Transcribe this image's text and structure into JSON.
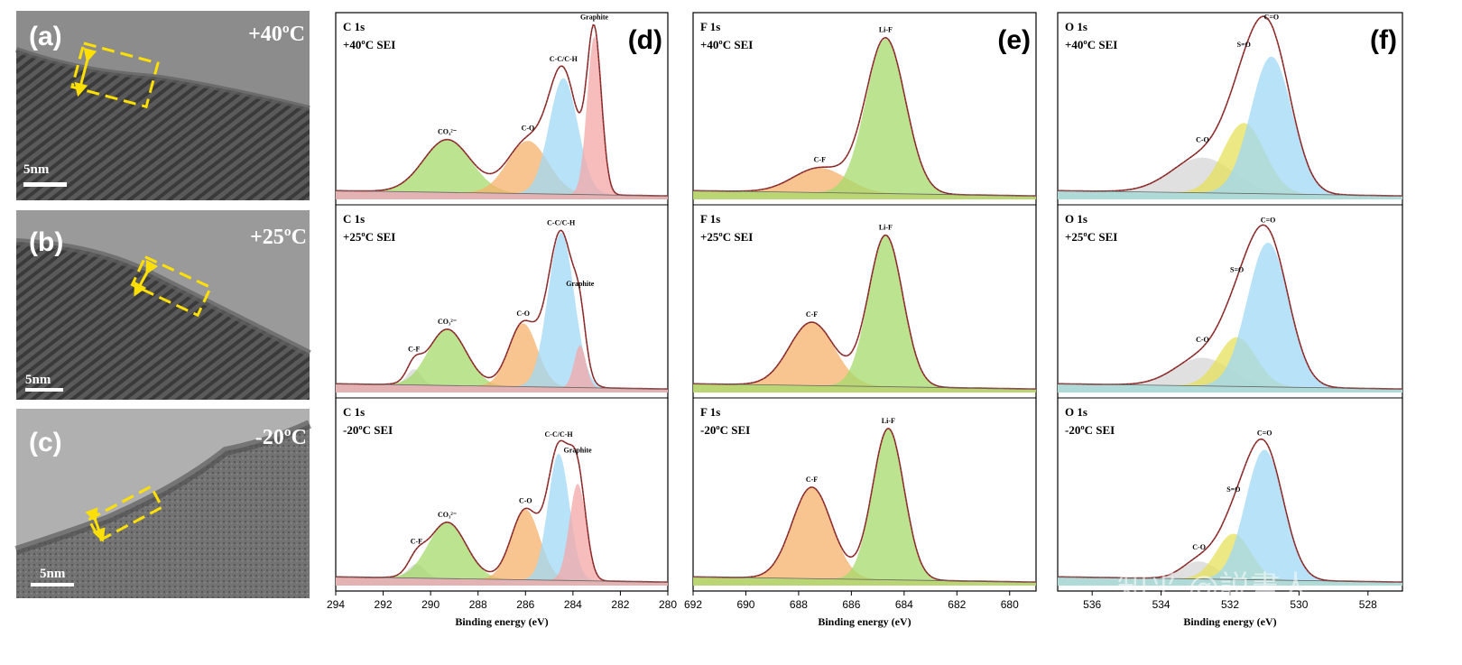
{
  "tem": [
    {
      "letter": "(a)",
      "temp": "+40ºC",
      "scale": "5nm"
    },
    {
      "letter": "(b)",
      "temp": "+25ºC",
      "scale": "5nm"
    },
    {
      "letter": "(c)",
      "temp": "-20ºC",
      "scale": "5nm"
    }
  ],
  "watermark": "知乎 @説書人",
  "colors": {
    "green": "#a6d96a",
    "orange": "#f5b26b",
    "blue": "#9fd8f5",
    "pink": "#f4a7a7",
    "yellow": "#e6e05a",
    "gray": "#d6d6d6",
    "envelope": "#b03030"
  },
  "chart_data": [
    {
      "type": "area",
      "letter": "(d)",
      "xlabel": "Binding energy (eV)",
      "xlim": [
        294,
        280
      ],
      "xticks": [
        294,
        292,
        290,
        288,
        286,
        284,
        282,
        280
      ],
      "rows": [
        {
          "title": "C 1s",
          "subtitle": "+40ºC SEI",
          "peaks": [
            {
              "name": "CO3 2-",
              "label": "CO₃²⁻",
              "center": 289.3,
              "height": 0.3,
              "width": 1.0,
              "color": "green"
            },
            {
              "name": "C-O",
              "label": "C-O",
              "center": 285.9,
              "height": 0.3,
              "width": 0.85,
              "color": "orange"
            },
            {
              "name": "C-C/C-H",
              "label": "C-C/C-H",
              "center": 284.4,
              "height": 0.66,
              "width": 0.6,
              "color": "blue"
            },
            {
              "name": "Graphite",
              "label": "Graphite",
              "center": 283.1,
              "height": 0.9,
              "width": 0.3,
              "color": "pink"
            }
          ]
        },
        {
          "title": "C 1s",
          "subtitle": "+25ºC SEI",
          "peaks": [
            {
              "name": "C-F",
              "label": "C-F",
              "center": 290.7,
              "height": 0.09,
              "width": 0.3,
              "color": "gray"
            },
            {
              "name": "CO3 2-",
              "label": "CO₃²⁻",
              "center": 289.3,
              "height": 0.32,
              "width": 0.8,
              "color": "green"
            },
            {
              "name": "C-O",
              "label": "C-O",
              "center": 286.1,
              "height": 0.36,
              "width": 0.6,
              "color": "orange"
            },
            {
              "name": "C-C/C-H",
              "label": "C-C/C-H",
              "center": 284.5,
              "height": 0.88,
              "width": 0.55,
              "color": "blue"
            },
            {
              "name": "Graphite",
              "label": "Graphite",
              "center": 283.7,
              "height": 0.24,
              "width": 0.25,
              "color": "pink"
            }
          ]
        },
        {
          "title": "C 1s",
          "subtitle": "-20ºC SEI",
          "peaks": [
            {
              "name": "C-F",
              "label": "C-F",
              "center": 290.6,
              "height": 0.08,
              "width": 0.35,
              "color": "gray"
            },
            {
              "name": "CO3 2-",
              "label": "CO₃²⁻",
              "center": 289.3,
              "height": 0.32,
              "width": 0.8,
              "color": "green"
            },
            {
              "name": "C-O",
              "label": "C-O",
              "center": 286.0,
              "height": 0.4,
              "width": 0.6,
              "color": "orange"
            },
            {
              "name": "C-C/C-H",
              "label": "C-C/C-H",
              "center": 284.6,
              "height": 0.72,
              "width": 0.45,
              "color": "blue"
            },
            {
              "name": "Graphite",
              "label": "Graphite",
              "center": 283.8,
              "height": 0.55,
              "width": 0.35,
              "color": "pink"
            }
          ]
        }
      ]
    },
    {
      "type": "area",
      "letter": "(e)",
      "xlabel": "Binding energy (eV)",
      "xlim": [
        692,
        679
      ],
      "xticks": [
        692,
        690,
        688,
        686,
        684,
        682,
        680
      ],
      "rows": [
        {
          "title": "F 1s",
          "subtitle": "+40ºC SEI",
          "peaks": [
            {
              "name": "C-F",
              "label": "C-F",
              "center": 687.2,
              "height": 0.14,
              "width": 1.0,
              "color": "orange"
            },
            {
              "name": "Li-F",
              "label": "Li-F",
              "center": 684.7,
              "height": 0.88,
              "width": 0.75,
              "color": "green"
            }
          ]
        },
        {
          "title": "F 1s",
          "subtitle": "+25ºC SEI",
          "peaks": [
            {
              "name": "C-F",
              "label": "C-F",
              "center": 687.5,
              "height": 0.36,
              "width": 0.85,
              "color": "orange"
            },
            {
              "name": "Li-F",
              "label": "Li-F",
              "center": 684.7,
              "height": 0.86,
              "width": 0.65,
              "color": "green"
            }
          ]
        },
        {
          "title": "F 1s",
          "subtitle": "-20ºC SEI",
          "peaks": [
            {
              "name": "C-F",
              "label": "C-F",
              "center": 687.5,
              "height": 0.52,
              "width": 0.75,
              "color": "orange"
            },
            {
              "name": "Li-F",
              "label": "Li-F",
              "center": 684.6,
              "height": 0.86,
              "width": 0.6,
              "color": "green"
            }
          ]
        }
      ]
    },
    {
      "type": "area",
      "letter": "(f)",
      "xlabel": "Binding energy (eV)",
      "xlim": [
        537,
        527
      ],
      "xticks": [
        536,
        534,
        532,
        530,
        528
      ],
      "rows": [
        {
          "title": "O 1s",
          "subtitle": "+40ºC SEI",
          "peaks": [
            {
              "name": "C-O",
              "label": "C-O",
              "center": 532.8,
              "height": 0.2,
              "width": 0.9,
              "color": "gray"
            },
            {
              "name": "S=O",
              "label": "S=O",
              "center": 531.6,
              "height": 0.4,
              "width": 0.6,
              "color": "yellow"
            },
            {
              "name": "C=O",
              "label": "C=O",
              "center": 530.8,
              "height": 0.78,
              "width": 0.6,
              "color": "blue"
            }
          ]
        },
        {
          "title": "O 1s",
          "subtitle": "+25ºC SEI",
          "peaks": [
            {
              "name": "C-O",
              "label": "C-O",
              "center": 532.8,
              "height": 0.16,
              "width": 0.8,
              "color": "gray"
            },
            {
              "name": "S=O",
              "label": "S=O",
              "center": 531.8,
              "height": 0.28,
              "width": 0.55,
              "color": "yellow"
            },
            {
              "name": "C=O",
              "label": "C=O",
              "center": 530.9,
              "height": 0.82,
              "width": 0.6,
              "color": "blue"
            }
          ]
        },
        {
          "title": "O 1s",
          "subtitle": "-20ºC SEI",
          "peaks": [
            {
              "name": "C-O",
              "label": "C-O",
              "center": 532.9,
              "height": 0.1,
              "width": 0.5,
              "color": "gray"
            },
            {
              "name": "S=O",
              "label": "S=O",
              "center": 531.9,
              "height": 0.26,
              "width": 0.5,
              "color": "yellow"
            },
            {
              "name": "C=O",
              "label": "C=O",
              "center": 531.0,
              "height": 0.74,
              "width": 0.55,
              "color": "blue"
            }
          ]
        }
      ]
    }
  ]
}
